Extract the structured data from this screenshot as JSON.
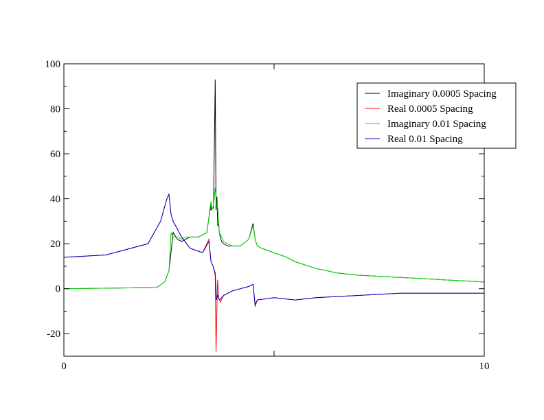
{
  "chart_data": {
    "type": "line",
    "title": "",
    "xlabel": "",
    "ylabel": "",
    "xlim": [
      0,
      10
    ],
    "ylim": [
      -30,
      100
    ],
    "x_ticks": [
      0,
      5,
      10
    ],
    "x_tick_labels": [
      "0",
      "",
      "10"
    ],
    "y_ticks": [
      -20,
      0,
      20,
      40,
      60,
      80,
      100
    ],
    "y_tick_labels": [
      "-20",
      "0",
      "20",
      "40",
      "60",
      "80",
      "100"
    ],
    "legend_position": "top-right",
    "grid": false,
    "series": [
      {
        "name": "Imaginary 0.0005 Spacing",
        "color": "#000000",
        "x": [
          0,
          2.2,
          2.4,
          2.5,
          2.6,
          2.7,
          2.8,
          2.9,
          3.0,
          3.2,
          3.4,
          3.5,
          3.5,
          3.56,
          3.6,
          3.62,
          3.64,
          3.66,
          3.68,
          3.7,
          3.72,
          3.75,
          3.8,
          3.9,
          4.0,
          4.2,
          4.4,
          4.5,
          4.55,
          4.6,
          4.7,
          5.0,
          5.3,
          5.5,
          6.0,
          6.5,
          7.0,
          8.0,
          9.0,
          10.0
        ],
        "y": [
          0,
          0.5,
          3,
          8,
          25,
          22,
          21,
          22,
          23,
          23,
          25,
          38,
          35,
          36,
          93,
          35,
          41,
          28,
          29,
          25,
          23,
          21,
          20,
          19,
          19,
          19,
          22,
          29,
          22,
          19,
          18,
          16,
          14,
          12,
          9,
          7,
          6,
          5,
          4,
          3
        ]
      },
      {
        "name": "Real 0.0005 Spacing",
        "color": "#ff0000",
        "x": [
          0,
          1.0,
          2.0,
          2.3,
          2.45,
          2.5,
          2.55,
          2.6,
          2.8,
          3.0,
          3.3,
          3.45,
          3.5,
          3.55,
          3.6,
          3.62,
          3.65,
          3.66,
          3.68,
          3.72,
          3.8,
          4.0,
          4.2,
          4.4,
          4.5,
          4.55,
          4.6,
          5.0,
          5.5,
          6.0,
          7.0,
          8.0,
          9.0,
          10.0
        ],
        "y": [
          14,
          15,
          20,
          30,
          40,
          42,
          33,
          30,
          23,
          18,
          16,
          22,
          12,
          10,
          6,
          -28,
          0,
          4,
          -4,
          -6,
          -3,
          -1,
          0,
          1,
          2,
          -8,
          -5,
          -4,
          -5,
          -4,
          -3,
          -2,
          -2,
          -2
        ]
      },
      {
        "name": "Imaginary 0.01 Spacing",
        "color": "#00dd00",
        "x": [
          0,
          2.2,
          2.4,
          2.5,
          2.55,
          2.6,
          2.7,
          2.8,
          2.9,
          3.0,
          3.2,
          3.4,
          3.5,
          3.52,
          3.56,
          3.6,
          3.63,
          3.66,
          3.7,
          3.75,
          3.8,
          3.9,
          4.0,
          4.2,
          4.4,
          4.5,
          4.55,
          4.6,
          4.7,
          5.0,
          5.3,
          5.5,
          6.0,
          6.5,
          7.0,
          8.0,
          9.0,
          10.0
        ],
        "y": [
          0,
          0.5,
          3,
          8,
          25,
          23,
          23,
          22,
          23,
          23,
          23,
          25,
          39,
          35,
          37,
          45,
          37,
          36,
          25,
          23,
          21,
          20,
          19,
          19,
          22,
          28,
          22,
          19,
          18,
          16,
          14,
          12,
          9,
          7,
          6,
          5,
          4,
          3
        ]
      },
      {
        "name": "Real 0.01 Spacing",
        "color": "#0000cc",
        "x": [
          0,
          1.0,
          2.0,
          2.3,
          2.45,
          2.5,
          2.55,
          2.6,
          2.8,
          3.0,
          3.3,
          3.45,
          3.5,
          3.55,
          3.6,
          3.63,
          3.66,
          3.7,
          3.8,
          4.0,
          4.2,
          4.4,
          4.5,
          4.55,
          4.6,
          5.0,
          5.5,
          6.0,
          7.0,
          8.0,
          9.0,
          10.0
        ],
        "y": [
          14,
          15,
          20,
          30,
          40,
          42,
          33,
          30,
          23,
          18,
          16,
          21,
          12,
          10,
          7,
          -5,
          -3,
          -5,
          -3,
          -1,
          0,
          1,
          2,
          -7,
          -5,
          -4,
          -5,
          -4,
          -3,
          -2,
          -2,
          -2
        ]
      }
    ]
  }
}
